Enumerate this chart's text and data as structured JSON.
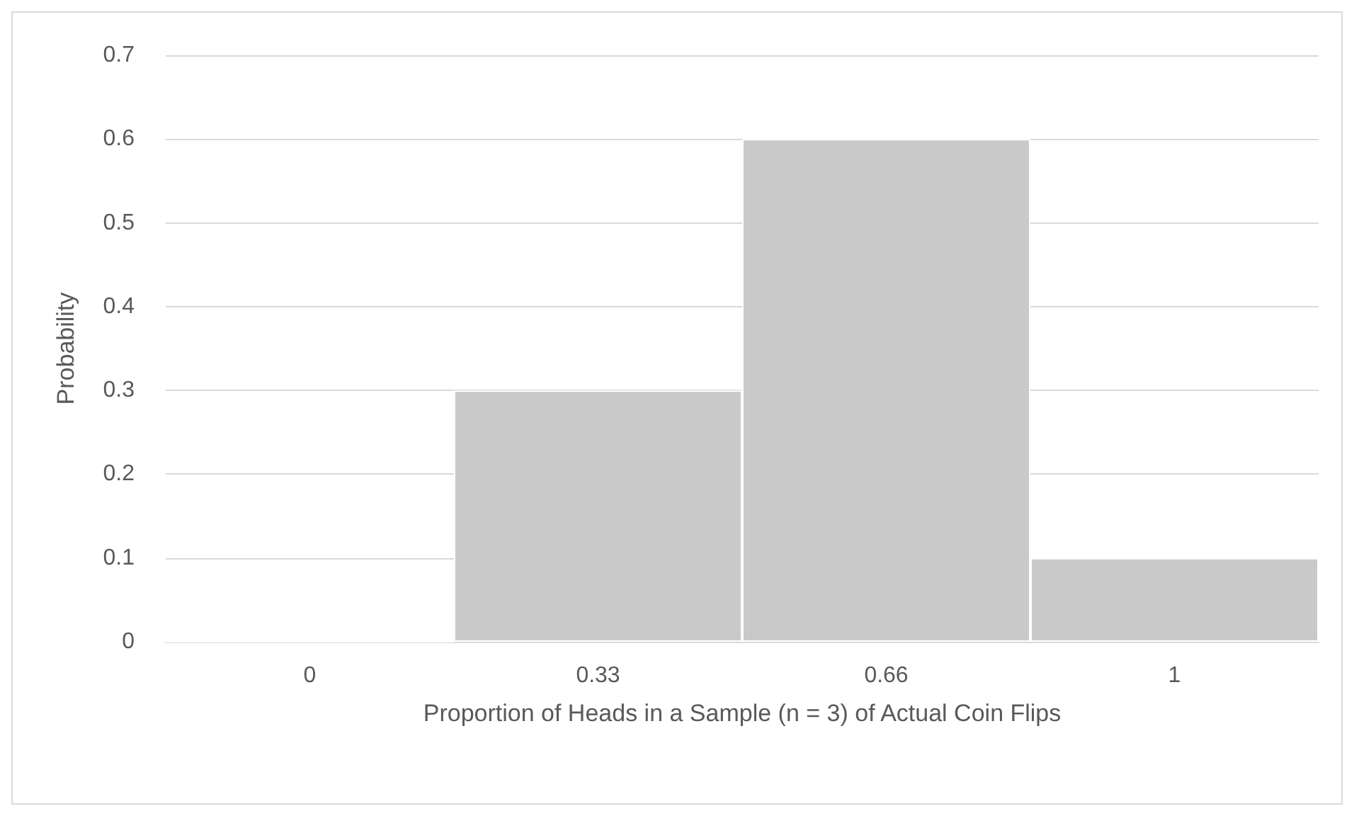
{
  "chart_data": {
    "type": "bar",
    "categories": [
      "0",
      "0.33",
      "0.66",
      "1"
    ],
    "values": [
      0,
      0.3,
      0.6,
      0.1
    ],
    "color": "#c9c9c9",
    "xlabel": "Proportion of Heads in a Sample (n = 3) of Actual Coin Flips",
    "ylabel": "Probability",
    "ylim": [
      0,
      0.7
    ],
    "yticks": [
      0,
      0.1,
      0.2,
      0.3,
      0.4,
      0.5,
      0.6,
      0.7
    ],
    "grid": "y"
  }
}
